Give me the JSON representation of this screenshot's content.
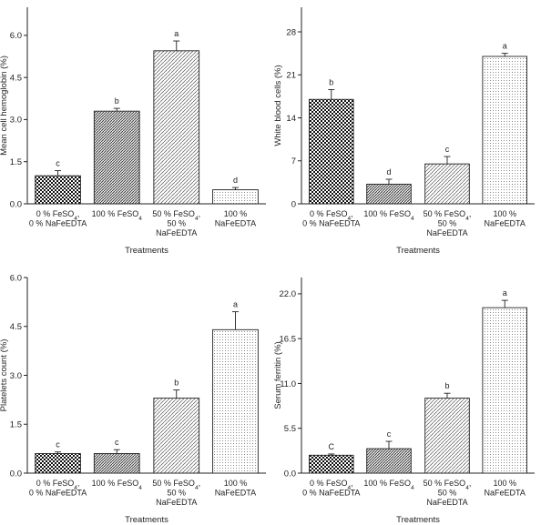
{
  "chart_data": [
    {
      "type": "bar",
      "panel": "top-left",
      "categories": [
        [
          "0 % FeSO₄,",
          "0 % NaFeEDTA"
        ],
        [
          "100 % FeSO₄"
        ],
        [
          "50 % FeSO₄,",
          "50 %",
          "NaFeEDTA"
        ],
        [
          "100 %",
          "NaFeEDTA"
        ]
      ],
      "values": [
        1.0,
        3.3,
        5.45,
        0.5
      ],
      "errors": [
        0.18,
        0.1,
        0.35,
        0.08
      ],
      "letters": [
        "c",
        "b",
        "a",
        "d"
      ],
      "xlabel": "Treatments",
      "ylabel": "Mean cell hemoglobin (%)",
      "ylim": [
        0,
        7.0
      ],
      "yticks": [
        0.0,
        1.5,
        3.0,
        4.5,
        6.0
      ],
      "ytick_labels": [
        "0.0",
        "1.5",
        "3.0",
        "4.5",
        "6.0"
      ],
      "grid": false,
      "patterns": [
        "checker",
        "diagonal",
        "diagonal-light",
        "dots"
      ]
    },
    {
      "type": "bar",
      "panel": "top-right",
      "categories": [
        [
          "0 % FeSO₄,",
          "0 % NaFeEDTA"
        ],
        [
          "100 % FeSO₄"
        ],
        [
          "50 % FeSO₄,",
          "50 %",
          "NaFeEDTA"
        ],
        [
          "100 %",
          "NaFeEDTA"
        ]
      ],
      "values": [
        17.0,
        3.2,
        6.5,
        24.0
      ],
      "errors": [
        1.6,
        0.8,
        1.2,
        0.5
      ],
      "letters": [
        "b",
        "d",
        "c",
        "a"
      ],
      "xlabel": "Treatments",
      "ylabel": "White blood cells (%)",
      "ylim": [
        0,
        32.0
      ],
      "yticks": [
        0,
        7,
        14,
        21,
        28
      ],
      "ytick_labels": [
        "0",
        "7",
        "14",
        "21",
        "28"
      ],
      "grid": false,
      "patterns": [
        "checker",
        "diagonal",
        "diagonal-light",
        "dots"
      ]
    },
    {
      "type": "bar",
      "panel": "bottom-left",
      "categories": [
        [
          "0 % FeSO₄,",
          "0 % NaFeEDTA"
        ],
        [
          "100 % FeSO₄"
        ],
        [
          "50 % FeSO₄,",
          "50 %",
          "NaFeEDTA"
        ],
        [
          "100 %",
          "NaFeEDTA"
        ]
      ],
      "values": [
        0.6,
        0.6,
        2.3,
        4.4
      ],
      "errors": [
        0.05,
        0.12,
        0.25,
        0.55
      ],
      "letters": [
        "c",
        "c",
        "b",
        "a"
      ],
      "xlabel": "Treatments",
      "ylabel": "Platelets count (%)",
      "ylim": [
        0,
        6.0
      ],
      "yticks": [
        0.0,
        1.5,
        3.0,
        4.5,
        6.0
      ],
      "ytick_labels": [
        "0.0",
        "1.5",
        "3.0",
        "4.5",
        "6.0"
      ],
      "grid": false,
      "patterns": [
        "checker",
        "diagonal",
        "diagonal-light",
        "dots"
      ]
    },
    {
      "type": "bar",
      "panel": "bottom-right",
      "categories": [
        [
          "0 % FeSO₄,",
          "0 % NaFeEDTA"
        ],
        [
          "100 % FeSO₄"
        ],
        [
          "50 % FeSO₄,",
          "50 %",
          "NaFeEDTA"
        ],
        [
          "100 %",
          "NaFeEDTA"
        ]
      ],
      "values": [
        2.2,
        3.0,
        9.2,
        20.3
      ],
      "errors": [
        0.15,
        0.9,
        0.6,
        0.9
      ],
      "letters": [
        "C",
        "c",
        "b",
        "a"
      ],
      "xlabel": "Treatments",
      "ylabel": "Serum ferritin (%)",
      "ylim": [
        0,
        24.0
      ],
      "yticks": [
        0.0,
        5.5,
        11.0,
        16.5,
        22.0
      ],
      "ytick_labels": [
        "0.0",
        "5.5",
        "11.0",
        "16.5",
        "22.0"
      ],
      "grid": false,
      "patterns": [
        "checker",
        "diagonal",
        "diagonal-light",
        "dots"
      ]
    }
  ]
}
